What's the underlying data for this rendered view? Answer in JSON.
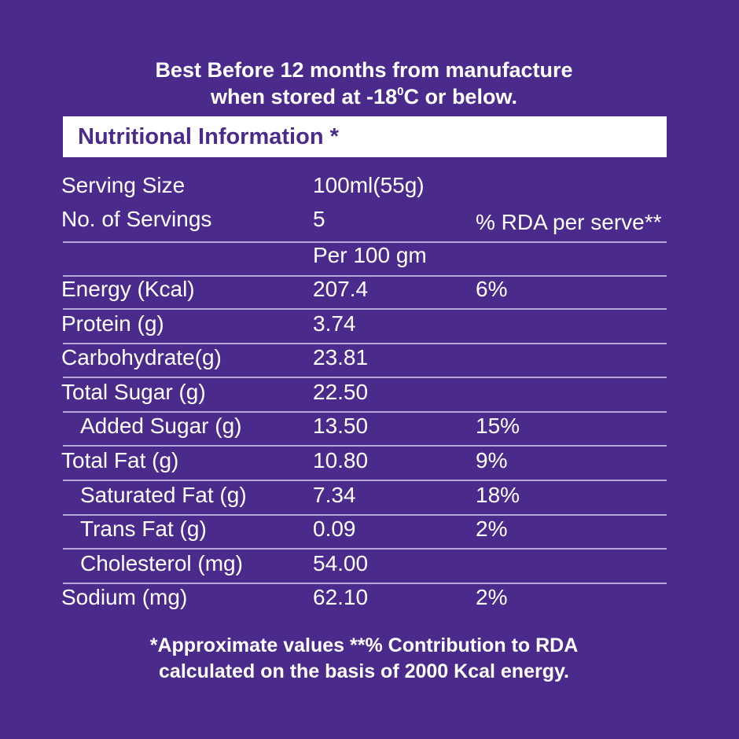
{
  "header": {
    "line1": "Best Before 12 months from manufacture",
    "line2_pre": "when stored at -18",
    "line2_sup": "0",
    "line2_post": "C or below."
  },
  "title": "Nutritional Information *",
  "serving": {
    "size_label": "Serving Size",
    "size_value": "100ml(55g)",
    "servings_label": "No. of Servings",
    "servings_value": "5",
    "rda_header": "% RDA per serve**",
    "per_label": "Per 100 gm"
  },
  "nutrients": [
    {
      "name": "Energy (Kcal)",
      "value": "207.4",
      "rda": "6%",
      "indent": false
    },
    {
      "name": "Protein (g)",
      "value": "3.74",
      "rda": "",
      "indent": false
    },
    {
      "name": "Carbohydrate(g)",
      "value": "23.81",
      "rda": "",
      "indent": false
    },
    {
      "name": "Total Sugar (g)",
      "value": "22.50",
      "rda": "",
      "indent": false
    },
    {
      "name": "Added Sugar (g)",
      "value": "13.50",
      "rda": "15%",
      "indent": true
    },
    {
      "name": "Total Fat (g)",
      "value": "10.80",
      "rda": "9%",
      "indent": false
    },
    {
      "name": "Saturated Fat (g)",
      "value": "7.34",
      "rda": "18%",
      "indent": true
    },
    {
      "name": "Trans Fat (g)",
      "value": "0.09",
      "rda": "2%",
      "indent": true
    },
    {
      "name": "Cholesterol (mg)",
      "value": "54.00",
      "rda": "",
      "indent": true
    },
    {
      "name": "Sodium (mg)",
      "value": "62.10",
      "rda": "2%",
      "indent": false
    }
  ],
  "footnote": {
    "line1": "*Approximate values **% Contribution to RDA",
    "line2": "calculated on the basis of 2000 Kcal energy."
  },
  "colors": {
    "background": "#4a2b8c",
    "text": "#ffffff",
    "title_bar": "#ffffff",
    "title_text": "#4a2b8c",
    "divider": "#b7a8da"
  }
}
